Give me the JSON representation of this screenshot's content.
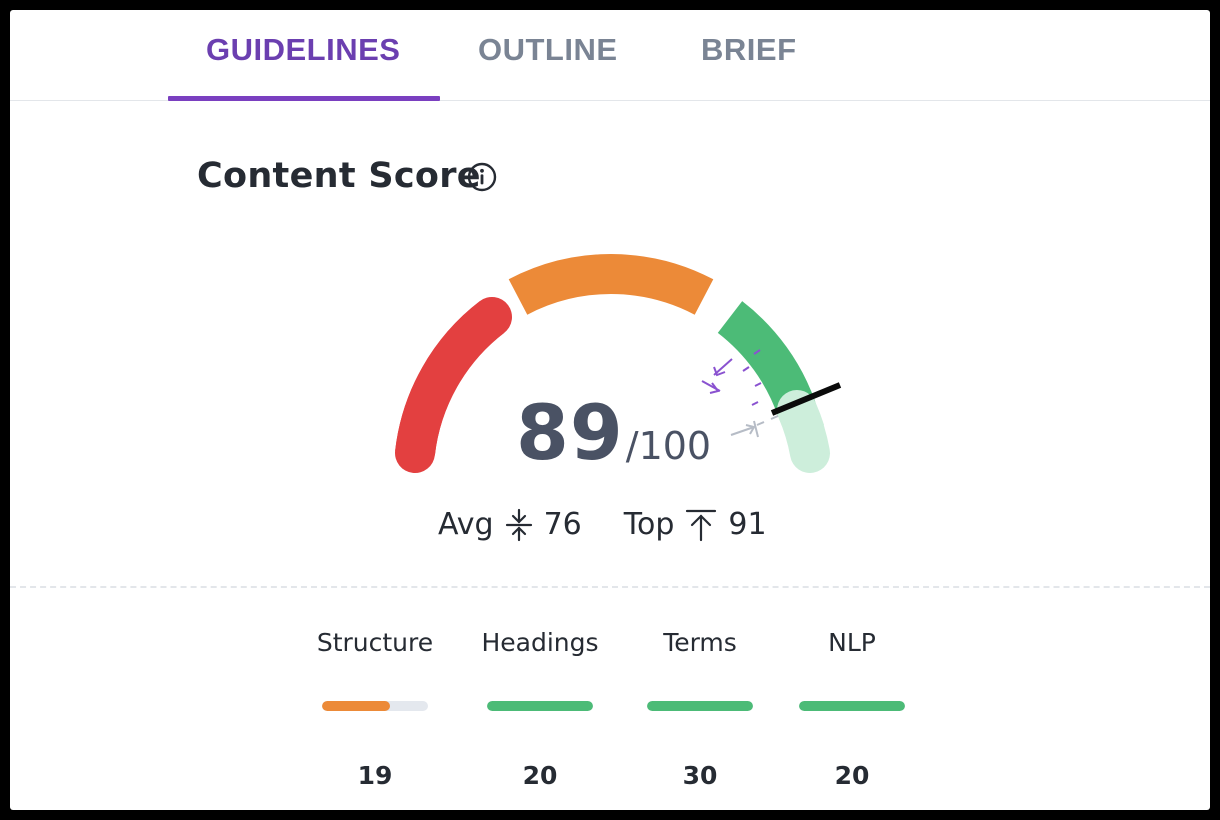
{
  "tabs": [
    {
      "label": "GUIDELINES",
      "active": true
    },
    {
      "label": "OUTLINE",
      "active": false
    },
    {
      "label": "BRIEF",
      "active": false
    }
  ],
  "content_score": {
    "title": "Content Score",
    "score": "89",
    "max": "/100",
    "avg_label": "Avg",
    "avg_value": "76",
    "top_label": "Top",
    "top_value": "91"
  },
  "colors": {
    "accent": "#6b3fb0",
    "red": "#e34040",
    "orange": "#ec8a38",
    "green": "#4cbb77",
    "green_light": "#cdeedb",
    "bar_track": "#e4e8ee"
  },
  "categories": [
    {
      "label": "Structure",
      "value": "19",
      "fill": 0.64,
      "color": "#ec8a38"
    },
    {
      "label": "Headings",
      "value": "20",
      "fill": 1.0,
      "color": "#4cbb77"
    },
    {
      "label": "Terms",
      "value": "30",
      "fill": 1.0,
      "color": "#4cbb77"
    },
    {
      "label": "NLP",
      "value": "20",
      "fill": 1.0,
      "color": "#4cbb77"
    }
  ],
  "icons": [
    "info-icon",
    "avg-compress-icon",
    "top-arrow-icon"
  ]
}
